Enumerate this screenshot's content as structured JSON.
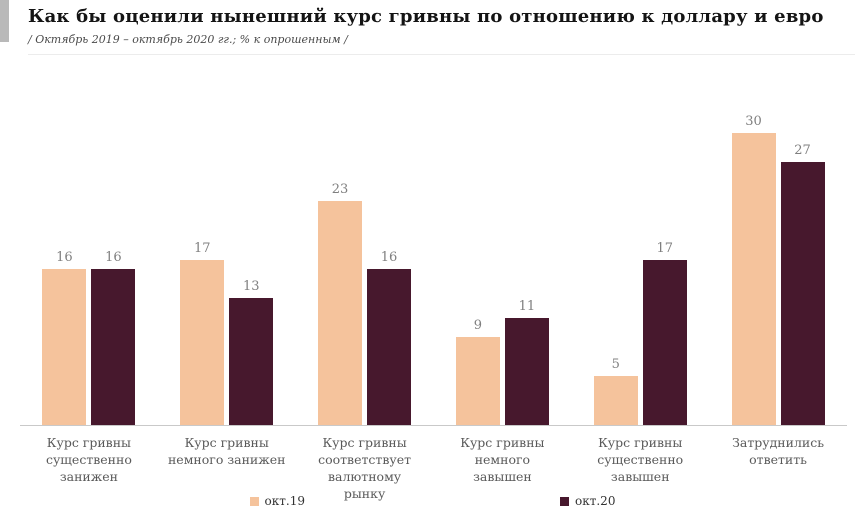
{
  "page": {
    "title": "Как бы оценили нынешний курс гривны по отношению к доллару и евро",
    "subtitle": "/ Октябрь 2019 – октябрь 2020 гг.; % к опрошенным /"
  },
  "chart_data": {
    "type": "bar",
    "title": "Как бы оценили нынешний курс гривны по отношению к доллару и евро",
    "subtitle": "/ Октябрь 2019 – октябрь 2020 гг.; % к опрошенным /",
    "categories": [
      "Курс гривны существенно занижен",
      "Курс гривны немного занижен",
      "Курс гривны соответствует валютному рынку",
      "Курс гривны немного завышен",
      "Курс гривны существенно завышен",
      "Затруднились ответить"
    ],
    "series": [
      {
        "name": "окт.19",
        "color": "#f5c39c",
        "values": [
          16,
          17,
          23,
          9,
          5,
          30
        ]
      },
      {
        "name": "окт.20",
        "color": "#47182d",
        "values": [
          16,
          13,
          16,
          11,
          17,
          27
        ]
      }
    ],
    "ylim": [
      0,
      30
    ],
    "grid": false,
    "legend_position": "bottom",
    "value_labels": true,
    "unit": "%"
  },
  "colors": {
    "series_1": "#f5c39c",
    "series_2": "#47182d",
    "axis_line": "#c9c9c9",
    "value_label": "#7f7f7f",
    "category_label": "#595959",
    "accent_bar": "#b9b9b9"
  }
}
